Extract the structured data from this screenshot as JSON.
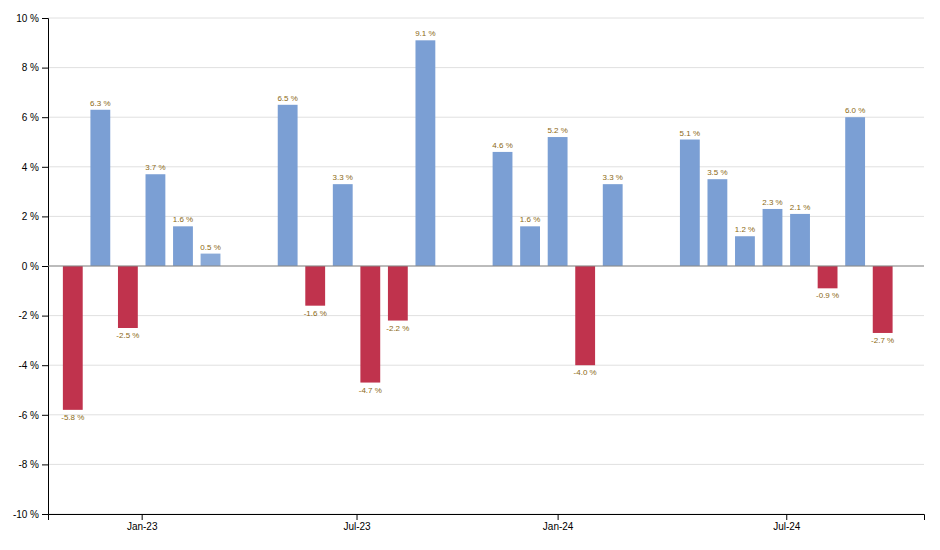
{
  "chart_data": {
    "type": "bar",
    "groups": [
      {
        "label": "Jan-23",
        "values": [
          -5.8,
          6.3,
          -2.5,
          3.7,
          1.6,
          0.5
        ],
        "value_labels": [
          "-5.8 %",
          "6.3 %",
          "-2.5 %",
          "3.7 %",
          "1.6 %",
          "0.5 %"
        ],
        "colors": [
          "#c0334d",
          "#7b9fd4",
          "#c0334d",
          "#7b9fd4",
          "#7b9fd4",
          "#8aaad8"
        ]
      },
      {
        "label": "Jul-23",
        "values": [
          6.5,
          -1.6,
          3.3,
          -4.7,
          -2.2,
          9.1
        ],
        "value_labels": [
          "6.5 %",
          "-1.6 %",
          "3.3 %",
          "-4.7 %",
          "-2.2 %",
          "9.1 %"
        ],
        "colors": [
          "#7b9fd4",
          "#c0334d",
          "#7b9fd4",
          "#c0334d",
          "#c0334d",
          "#7b9fd4"
        ]
      },
      {
        "label": "Jan-24",
        "values": [
          4.6,
          1.6,
          5.2,
          -4.0,
          3.3
        ],
        "value_labels": [
          "4.6 %",
          "1.6 %",
          "5.2 %",
          "-4.0 %",
          "3.3 %"
        ],
        "colors": [
          "#7b9fd4",
          "#7b9fd4",
          "#7b9fd4",
          "#c0334d",
          "#7b9fd4"
        ]
      },
      {
        "label": "Jul-24",
        "values": [
          5.1,
          3.5,
          1.2,
          2.3,
          2.1,
          -0.9,
          6.0,
          -2.7
        ],
        "value_labels": [
          "5.1 %",
          "3.5 %",
          "1.2 %",
          "2.3 %",
          "2.1 %",
          "-0.9 %",
          "6.0 %",
          "-2.7 %"
        ],
        "colors": [
          "#7b9fd4",
          "#7b9fd4",
          "#7b9fd4",
          "#7b9fd4",
          "#7b9fd4",
          "#c0334d",
          "#7b9fd4",
          "#c0334d"
        ]
      }
    ],
    "ylim": [
      -10,
      10
    ],
    "yticks": [
      {
        "value": -10,
        "label": "-10 %"
      },
      {
        "value": -8,
        "label": "-8 %"
      },
      {
        "value": -6,
        "label": "-6 %"
      },
      {
        "value": -4,
        "label": "-4 %"
      },
      {
        "value": -2,
        "label": "-2 %"
      },
      {
        "value": 0,
        "label": "0 %"
      },
      {
        "value": 2,
        "label": "2 %"
      },
      {
        "value": 4,
        "label": "4 %"
      },
      {
        "value": 6,
        "label": "6 %"
      },
      {
        "value": 8,
        "label": "8 %"
      },
      {
        "value": 10,
        "label": "10 %"
      }
    ],
    "grid": true,
    "data_labels": true
  }
}
